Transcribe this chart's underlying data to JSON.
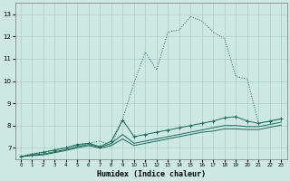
{
  "xlabel": "Humidex (Indice chaleur)",
  "bg_color": "#cde8e2",
  "grid_color": "#aaccc6",
  "line_color": "#1a6b5a",
  "xlim": [
    -0.5,
    23.5
  ],
  "ylim": [
    6.5,
    13.5
  ],
  "xticks": [
    0,
    1,
    2,
    3,
    4,
    5,
    6,
    7,
    8,
    9,
    10,
    11,
    12,
    13,
    14,
    15,
    16,
    17,
    18,
    19,
    20,
    21,
    22,
    23
  ],
  "yticks": [
    7,
    8,
    9,
    10,
    11,
    12,
    13
  ],
  "series": {
    "line1_dotted": {
      "x": [
        0,
        1,
        2,
        3,
        4,
        5,
        6,
        7,
        8,
        9,
        10,
        11,
        12,
        13,
        14,
        15,
        16,
        17,
        18,
        19,
        20,
        21,
        22,
        23
      ],
      "y": [
        6.6,
        6.75,
        6.8,
        6.9,
        7.0,
        7.1,
        7.2,
        7.3,
        7.1,
        8.3,
        9.9,
        11.3,
        10.5,
        12.2,
        12.3,
        12.9,
        12.7,
        12.2,
        11.9,
        10.2,
        10.1,
        8.1,
        8.2,
        8.3
      ],
      "style": "dotted",
      "marker": false
    },
    "line2_solid_marker": {
      "x": [
        0,
        1,
        2,
        3,
        4,
        5,
        6,
        7,
        8,
        9,
        10,
        11,
        12,
        13,
        14,
        15,
        16,
        17,
        18,
        19,
        20,
        21,
        22,
        23
      ],
      "y": [
        6.6,
        6.7,
        6.8,
        6.9,
        7.0,
        7.15,
        7.2,
        7.05,
        7.3,
        8.25,
        7.5,
        7.6,
        7.7,
        7.8,
        7.9,
        8.0,
        8.1,
        8.2,
        8.35,
        8.4,
        8.2,
        8.1,
        8.2,
        8.3
      ],
      "style": "solid",
      "marker": true
    },
    "line3_solid": {
      "x": [
        0,
        1,
        2,
        3,
        4,
        5,
        6,
        7,
        8,
        9,
        10,
        11,
        12,
        13,
        14,
        15,
        16,
        17,
        18,
        19,
        20,
        21,
        22,
        23
      ],
      "y": [
        6.6,
        6.68,
        6.72,
        6.82,
        6.92,
        7.05,
        7.15,
        7.02,
        7.2,
        7.6,
        7.2,
        7.3,
        7.4,
        7.5,
        7.6,
        7.7,
        7.8,
        7.9,
        8.0,
        8.0,
        7.95,
        7.95,
        8.05,
        8.15
      ],
      "style": "solid",
      "marker": false
    },
    "line4_solid": {
      "x": [
        0,
        1,
        2,
        3,
        4,
        5,
        6,
        7,
        8,
        9,
        10,
        11,
        12,
        13,
        14,
        15,
        16,
        17,
        18,
        19,
        20,
        21,
        22,
        23
      ],
      "y": [
        6.6,
        6.65,
        6.68,
        6.78,
        6.88,
        7.0,
        7.1,
        6.98,
        7.1,
        7.4,
        7.1,
        7.2,
        7.3,
        7.4,
        7.5,
        7.6,
        7.7,
        7.75,
        7.85,
        7.85,
        7.82,
        7.82,
        7.92,
        8.02
      ],
      "style": "solid",
      "marker": false
    }
  }
}
